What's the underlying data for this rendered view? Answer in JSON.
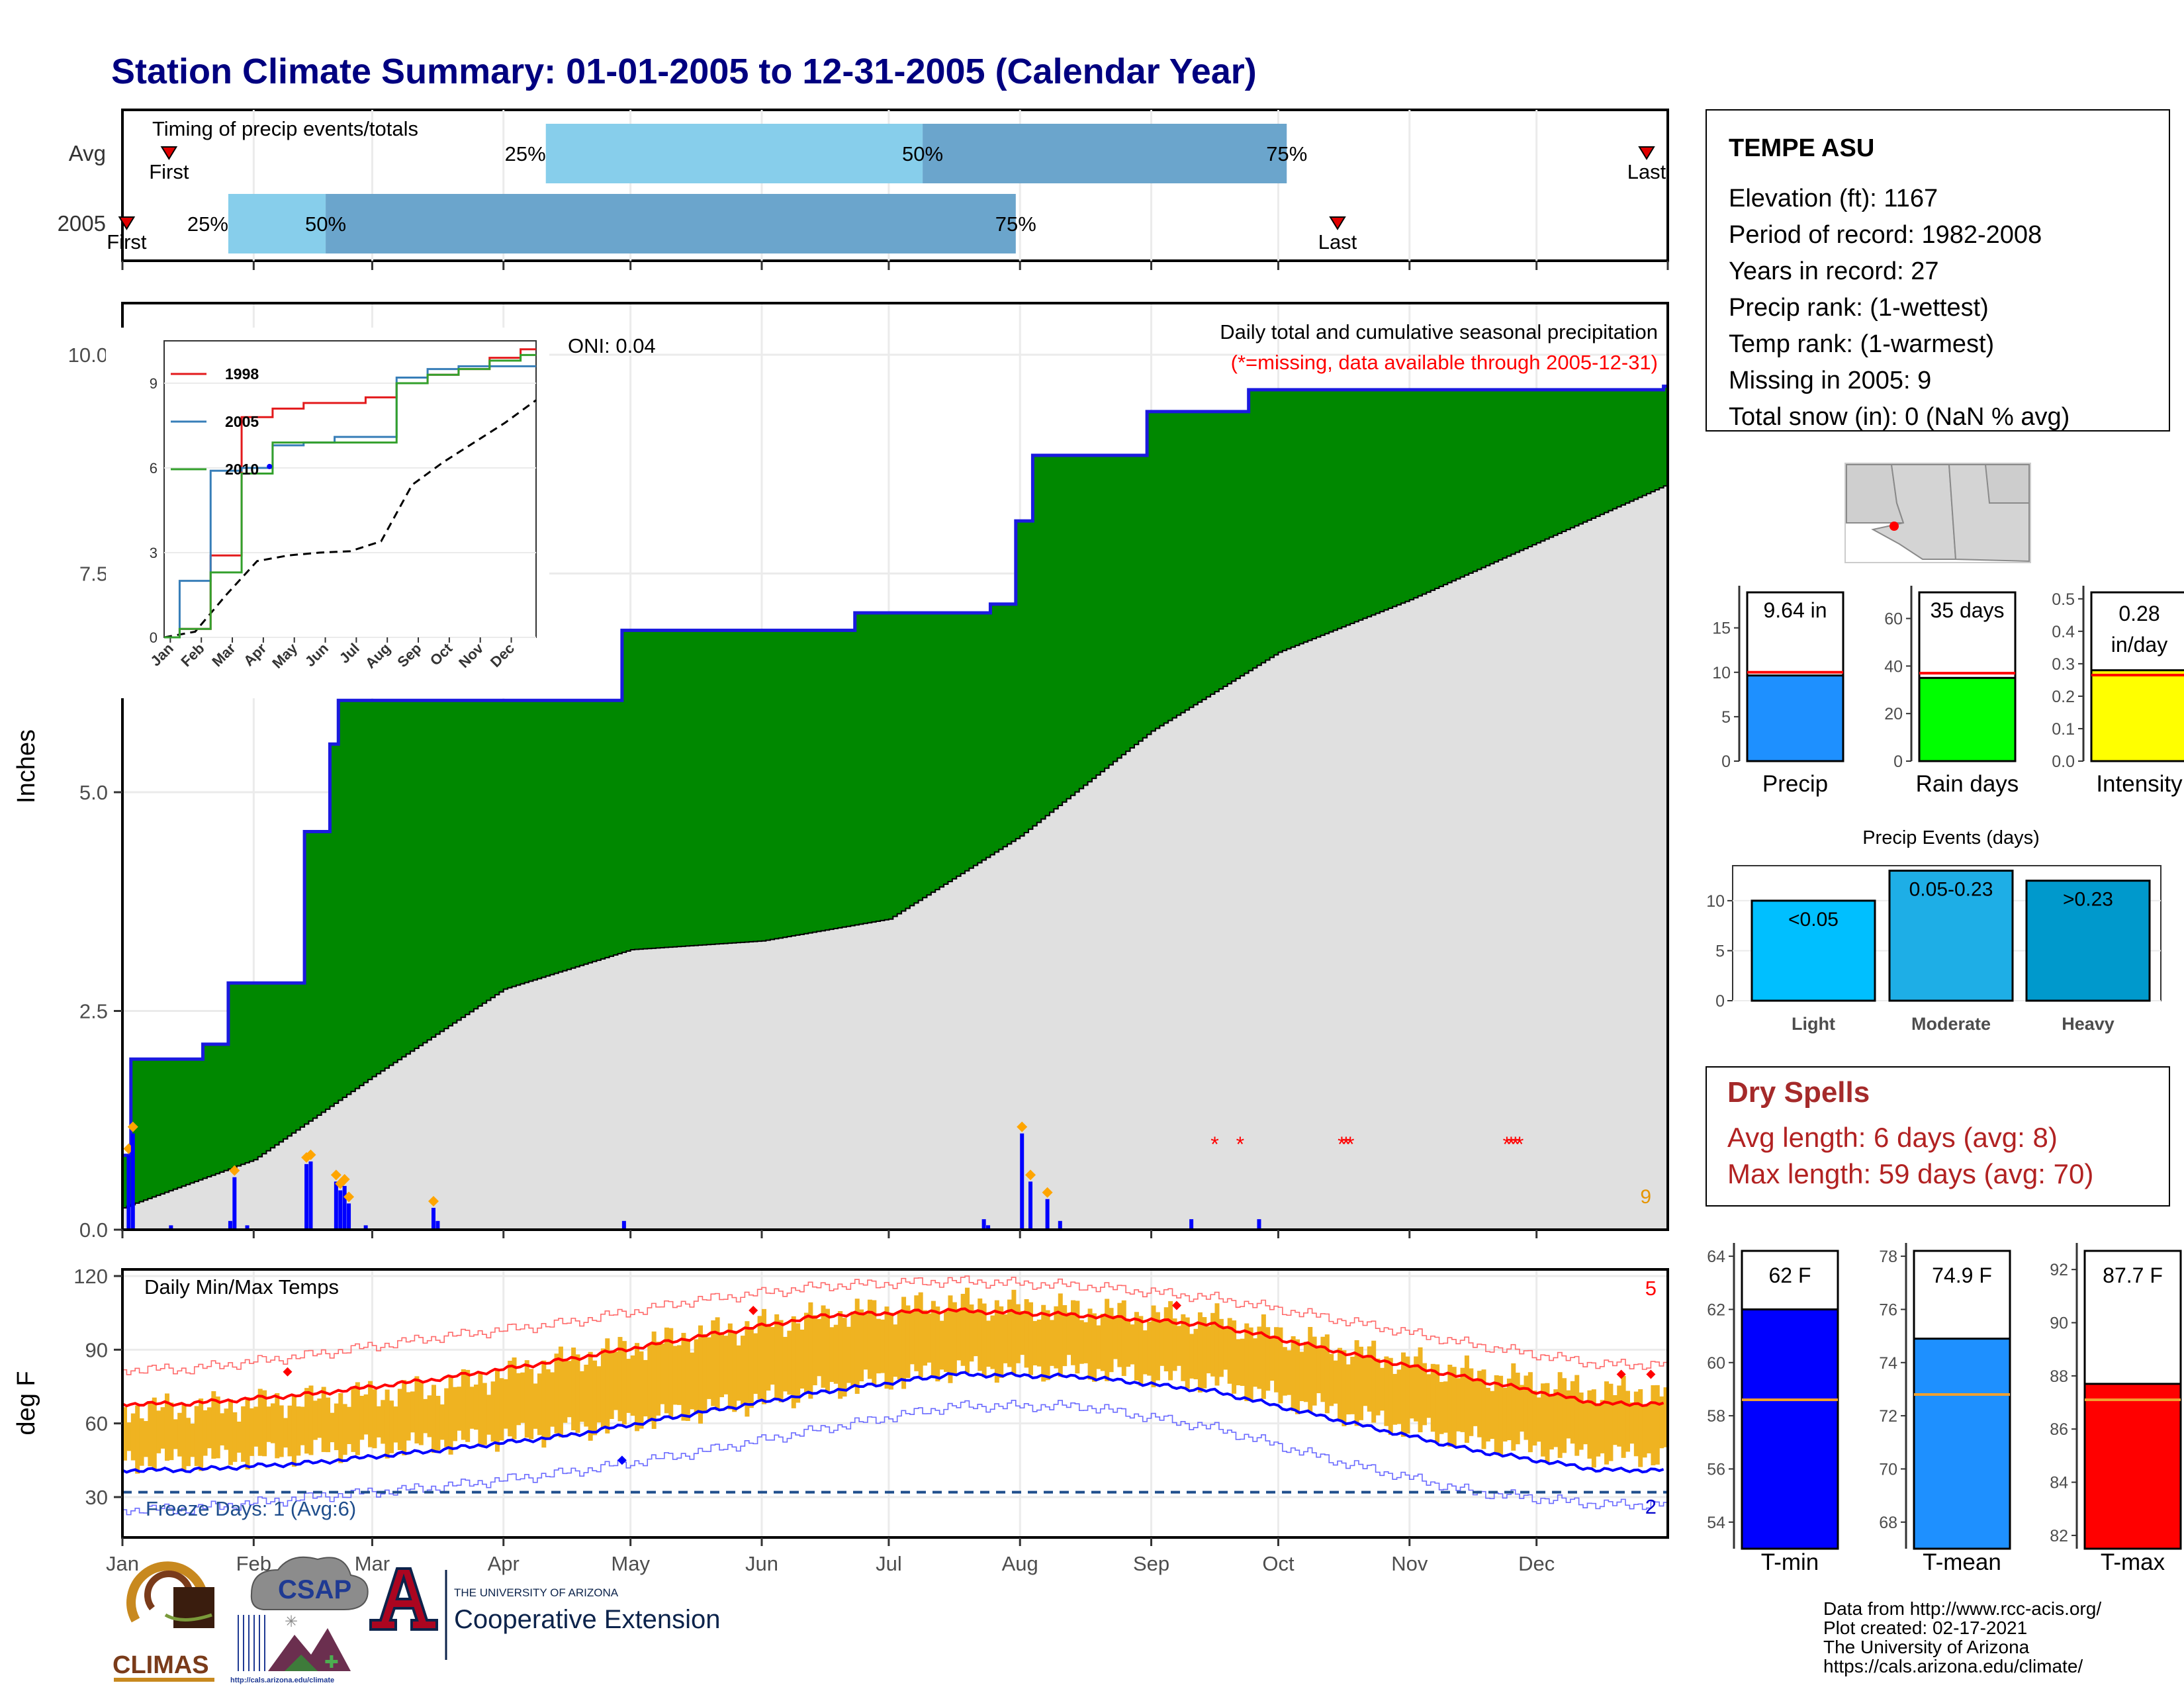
{
  "page": {
    "title": "Station Climate Summary: 01-01-2005 to 12-31-2005 (Calendar Year)"
  },
  "timing": {
    "title": "Timing of precip events/totals",
    "rows": [
      {
        "label": "Avg",
        "first_day": 12,
        "last_day": 361,
        "p25": 101,
        "p50": 190,
        "p75": 276,
        "first_label": "First",
        "last_label": "Last",
        "p25_label": "25%",
        "p50_label": "50%",
        "p75_label": "75%"
      },
      {
        "label": "2005",
        "first_day": 2,
        "last_day": 288,
        "p25": 26,
        "p50": 49,
        "p75": 212,
        "first_label": "First",
        "last_label": "Last",
        "p25_label": "25%",
        "p50_label": "50%",
        "p75_label": "75%"
      }
    ]
  },
  "station": {
    "name": "TEMPE ASU",
    "lines": [
      "Elevation (ft): 1167",
      "Period of record: 1982-2008",
      "Years in record: 27",
      "Precip rank:  (1-wettest)",
      "Temp rank:  (1-warmest)",
      "Missing in 2005: 9",
      "Total snow (in): 0 (NaN % avg)"
    ]
  },
  "precip_panel": {
    "ylabel": "Inches",
    "header": "Daily total and cumulative seasonal precipitation",
    "missing_note": "(*=missing, data available through 2005-12-31)",
    "oni": "ONI: 0.04",
    "missing_count": "9",
    "yticks": [
      "0.0",
      "2.5",
      "5.0",
      "7.5",
      "10.0"
    ],
    "colors": {
      "cum_fill": "#008800",
      "avg_fill": "#e0e0e0",
      "cum_line": "#1a1adf",
      "daily_bar": "#0000ff",
      "marker": "#ffa500",
      "missing": "#ff0000"
    }
  },
  "inset": {
    "legend": [
      "1998",
      "2005",
      "2010"
    ],
    "colors": [
      "#e31a1c",
      "#377eb8",
      "#33a02c"
    ],
    "yticks": [
      "0",
      "3",
      "6",
      "9"
    ],
    "months": [
      "Jan",
      "Feb",
      "Mar",
      "Apr",
      "May",
      "Jun",
      "Jul",
      "Aug",
      "Sep",
      "Oct",
      "Nov",
      "Dec"
    ]
  },
  "temp_panel": {
    "ylabel": "deg F",
    "title": "Daily Min/Max Temps",
    "freeze": "Freeze Days: 1 (Avg:6)",
    "record_high_count": "5",
    "record_low_count": "2",
    "yticks": [
      "30",
      "60",
      "90",
      "120"
    ],
    "months": [
      "Jan",
      "Feb",
      "Mar",
      "Apr",
      "May",
      "Jun",
      "Jul",
      "Aug",
      "Sep",
      "Oct",
      "Nov",
      "Dec"
    ],
    "colors": {
      "range_bar": "#efb321",
      "avg_max": "#ff0000",
      "avg_min": "#0000ff",
      "freeze_line": "#1f4e8c"
    }
  },
  "summary_bars": [
    {
      "label": "Precip",
      "value_label": "9.64 in",
      "value": 9.64,
      "avg": 10,
      "max": 19,
      "ticks": [
        "0",
        "5",
        "10",
        "15"
      ],
      "color": "#1e90ff"
    },
    {
      "label": "Rain days",
      "value_label": "35 days",
      "value": 35,
      "avg": 37,
      "max": 71,
      "ticks": [
        "0",
        "20",
        "40",
        "60"
      ],
      "color": "#00ff00"
    },
    {
      "label": "Intensity",
      "value_label": "0.28 in/day",
      "value_label_lines": [
        "0.28",
        "in/day"
      ],
      "value": 0.28,
      "avg": 0.265,
      "max": 0.52,
      "ticks": [
        "0.0",
        "0.1",
        "0.2",
        "0.3",
        "0.4",
        "0.5"
      ],
      "color": "#ffff00"
    }
  ],
  "events": {
    "title": "Precip Events (days)",
    "bars": [
      {
        "category": "Light",
        "label": "<0.05",
        "value": 10,
        "color": "#00bfff"
      },
      {
        "category": "Moderate",
        "label": "0.05-0.23",
        "value": 13,
        "color": "#1eaee6"
      },
      {
        "category": "Heavy",
        "label": ">0.23",
        "value": 12,
        "color": "#0099cc"
      }
    ],
    "ticks": [
      "0",
      "5",
      "10"
    ]
  },
  "dry_spells": {
    "title": "Dry Spells",
    "avg_line": "Avg length: 6 days (avg: 8)",
    "max_line": "Max length: 59 days (avg: 70)"
  },
  "temp_bars": [
    {
      "label": "T-min",
      "value_label": "62 F",
      "value": 62,
      "avg": 58.6,
      "min": 53,
      "max": 64.5,
      "ticks": [
        "54",
        "56",
        "58",
        "60",
        "62",
        "64"
      ],
      "color": "#0000ff"
    },
    {
      "label": "T-mean",
      "value_label": "74.9 F",
      "value": 74.9,
      "avg": 72.8,
      "min": 67,
      "max": 78.5,
      "ticks": [
        "68",
        "70",
        "72",
        "74",
        "76",
        "78"
      ],
      "color": "#1e90ff"
    },
    {
      "label": "T-max",
      "value_label": "87.7 F",
      "value": 87.7,
      "avg": 87.1,
      "min": 81.5,
      "max": 93,
      "ticks": [
        "82",
        "84",
        "86",
        "88",
        "90",
        "92"
      ],
      "color": "#ff0000"
    }
  ],
  "footer": {
    "credits": [
      "Data from http://www.rcc-acis.org/",
      "Plot created: 02-17-2021",
      "The University of Arizona",
      "https://cals.arizona.edu/climate/"
    ],
    "climas": "CLIMAS",
    "csap": "CSAP",
    "csap_url": "http://cals.arizona.edu/climate",
    "ua_small": "THE UNIVERSITY OF ARIZONA",
    "ua_big": "Cooperative Extension"
  },
  "chart_data": [
    {
      "type": "bar",
      "title": "Timing of precip events/totals",
      "categories": [
        "Avg",
        "2005"
      ],
      "series": [
        {
          "name": "25%",
          "values": [
            101,
            26
          ]
        },
        {
          "name": "50%",
          "values": [
            190,
            49
          ]
        },
        {
          "name": "75%",
          "values": [
            276,
            212
          ]
        },
        {
          "name": "First",
          "values": [
            12,
            2
          ]
        },
        {
          "name": "Last",
          "values": [
            361,
            288
          ]
        }
      ]
    },
    {
      "type": "area",
      "title": "Daily total and cumulative seasonal precipitation",
      "ylabel": "Inches",
      "ylim": [
        0,
        10.5
      ],
      "cumulative_2005": [
        [
          1,
          0.85
        ],
        [
          3,
          1.95
        ],
        [
          11,
          2.08
        ],
        [
          13,
          2.13
        ],
        [
          45,
          2.13
        ],
        [
          47,
          2.2
        ],
        [
          48,
          2.82
        ],
        [
          55,
          2.9
        ],
        [
          75,
          2.9
        ],
        [
          76,
          3.0
        ],
        [
          78,
          3.9
        ],
        [
          86,
          4.55
        ],
        [
          91,
          4.55
        ],
        [
          96,
          4.63
        ],
        [
          99,
          5.0
        ],
        [
          101,
          5.55
        ],
        [
          104,
          6.03
        ],
        [
          106,
          6.05
        ],
        [
          140,
          6.08
        ],
        [
          148,
          6.08
        ],
        [
          160,
          6.08
        ],
        [
          179,
          6.08
        ],
        [
          180,
          6.6
        ],
        [
          197,
          6.6
        ],
        [
          224,
          6.72
        ],
        [
          255,
          6.8
        ],
        [
          265,
          6.83
        ],
        [
          280,
          6.83
        ],
        [
          305,
          7.0
        ],
        [
          345,
          7.0
        ],
        [
          350,
          7.05
        ],
        [
          358,
          7.15
        ],
        [
          367,
          7.15
        ],
        [
          375,
          7.15
        ]
      ],
      "cumulative_2005_dates": [
        [
          "2005-01-01",
          0.85
        ],
        [
          "2005-01-03",
          1.95
        ],
        [
          "2005-01-20",
          2.12
        ],
        [
          "2005-01-26",
          2.82
        ],
        [
          "2005-02-13",
          4.55
        ],
        [
          "2005-02-19",
          5.55
        ],
        [
          "2005-02-21",
          6.05
        ],
        [
          "2005-04-29",
          6.85
        ],
        [
          "2005-06-23",
          7.05
        ],
        [
          "2005-07-25",
          7.15
        ],
        [
          "2005-07-31",
          8.1
        ],
        [
          "2005-08-04",
          8.85
        ],
        [
          "2005-08-31",
          9.35
        ],
        [
          "2005-09-24",
          9.6
        ],
        [
          "2005-12-31",
          9.64
        ]
      ],
      "average_cumulative": [
        [
          "2005-01-01",
          0.25
        ],
        [
          "2005-02-01",
          0.8
        ],
        [
          "2005-03-01",
          1.75
        ],
        [
          "2005-04-01",
          2.75
        ],
        [
          "2005-05-01",
          3.2
        ],
        [
          "2005-06-01",
          3.3
        ],
        [
          "2005-07-01",
          3.55
        ],
        [
          "2005-08-01",
          4.5
        ],
        [
          "2005-09-01",
          5.7
        ],
        [
          "2005-10-01",
          6.6
        ],
        [
          "2005-11-01",
          7.2
        ],
        [
          "2005-12-01",
          7.85
        ],
        [
          "2005-12-31",
          8.5
        ]
      ],
      "daily_totals": [
        [
          "2005-01-02",
          0.85
        ],
        [
          "2005-01-03",
          1.1
        ],
        [
          "2005-01-12",
          0.05
        ],
        [
          "2005-01-26",
          0.1
        ],
        [
          "2005-01-27",
          0.6
        ],
        [
          "2005-01-30",
          0.05
        ],
        [
          "2005-02-13",
          0.75
        ],
        [
          "2005-02-14",
          0.78
        ],
        [
          "2005-02-20",
          0.55
        ],
        [
          "2005-02-21",
          0.45
        ],
        [
          "2005-02-22",
          0.5
        ],
        [
          "2005-02-23",
          0.3
        ],
        [
          "2005-02-27",
          0.05
        ],
        [
          "2005-03-15",
          0.25
        ],
        [
          "2005-03-16",
          0.1
        ],
        [
          "2005-04-29",
          0.1
        ],
        [
          "2005-07-23",
          0.12
        ],
        [
          "2005-07-24",
          0.05
        ],
        [
          "2005-07-24",
          0.05
        ],
        [
          "2005-08-01",
          1.1
        ],
        [
          "2005-08-03",
          0.55
        ],
        [
          "2005-08-07",
          0.35
        ],
        [
          "2005-08-10",
          0.1
        ],
        [
          "2005-09-10",
          0.12
        ],
        [
          "2005-09-26",
          0.12
        ]
      ],
      "missing_dates": [
        "2005-09-16",
        "2005-09-22",
        "2005-10-16",
        "2005-10-17",
        "2005-10-18",
        "2005-11-24",
        "2005-11-25",
        "2005-11-26",
        "2005-11-27"
      ]
    },
    {
      "type": "line",
      "title": "",
      "categories": [
        "Jan",
        "Feb",
        "Mar",
        "Apr",
        "May",
        "Jun",
        "Jul",
        "Aug",
        "Sep",
        "Oct",
        "Nov",
        "Dec"
      ],
      "ylim": [
        0,
        10.5
      ],
      "series": [
        {
          "name": "1998",
          "values": [
            0.3,
            2.9,
            7.8,
            8.1,
            8.3,
            8.3,
            8.5,
            9.0,
            9.3,
            9.5,
            9.9,
            10.2
          ]
        },
        {
          "name": "2005",
          "values": [
            2.0,
            5.9,
            6.0,
            6.8,
            6.9,
            7.1,
            7.1,
            9.2,
            9.5,
            9.6,
            9.6,
            9.6
          ]
        },
        {
          "name": "2010",
          "values": [
            0.3,
            2.3,
            5.8,
            6.9,
            6.9,
            6.9,
            6.9,
            9.0,
            9.3,
            9.5,
            9.8,
            10.0
          ]
        }
      ]
    },
    {
      "type": "line",
      "title": "Daily Min/Max Temps",
      "ylabel": "deg F",
      "ylim": [
        20,
        120
      ],
      "categories": [
        "Jan",
        "Feb",
        "Mar",
        "Apr",
        "May",
        "Jun",
        "Jul",
        "Aug",
        "Sep",
        "Oct",
        "Nov",
        "Dec"
      ],
      "series": [
        {
          "name": "Avg max",
          "values": [
            68,
            72,
            78,
            86,
            95,
            104,
            106,
            104,
            100,
            89,
            78,
            68
          ]
        },
        {
          "name": "Avg min",
          "values": [
            41,
            44,
            49,
            55,
            64,
            73,
            80,
            79,
            73,
            61,
            49,
            41
          ]
        },
        {
          "name": "Record max",
          "values": [
            82,
            88,
            95,
            101,
            110,
            116,
            118,
            116,
            111,
            102,
            92,
            84
          ]
        },
        {
          "name": "Record min",
          "values": [
            25,
            30,
            34,
            40,
            48,
            58,
            67,
            67,
            58,
            44,
            32,
            27
          ]
        },
        {
          "name": "2005 max",
          "values": [
            66,
            70,
            74,
            86,
            96,
            104,
            109,
            106,
            102,
            90,
            80,
            73
          ]
        },
        {
          "name": "2005 min",
          "values": [
            45,
            49,
            52,
            57,
            65,
            74,
            82,
            82,
            77,
            64,
            53,
            47
          ]
        }
      ]
    },
    {
      "type": "bar",
      "title": "Precip Events (days)",
      "categories": [
        "Light",
        "Moderate",
        "Heavy"
      ],
      "values": [
        10,
        13,
        12
      ],
      "ylim": [
        0,
        13.5
      ]
    },
    {
      "type": "bar",
      "categories": [
        "Precip",
        "Rain days",
        "Intensity"
      ],
      "values": [
        9.64,
        35,
        0.28
      ],
      "averages": [
        10,
        37,
        0.265
      ]
    },
    {
      "type": "bar",
      "categories": [
        "T-min",
        "T-mean",
        "T-max"
      ],
      "values": [
        62,
        74.9,
        87.7
      ],
      "averages": [
        58.6,
        72.8,
        87.1
      ]
    }
  ]
}
